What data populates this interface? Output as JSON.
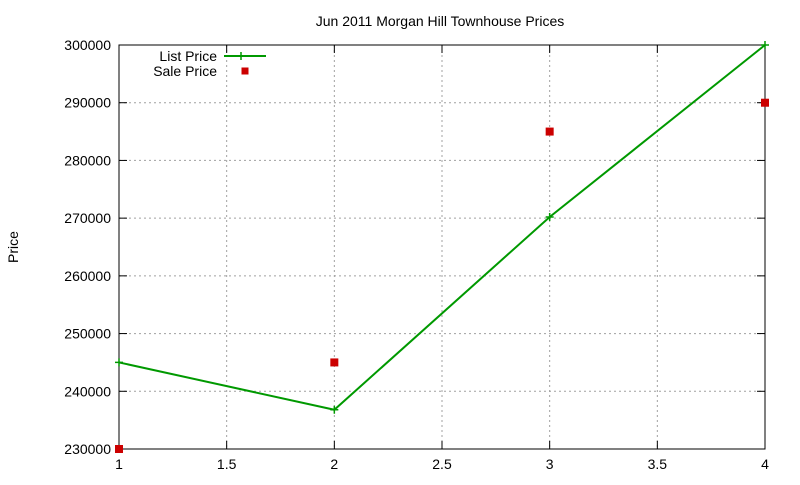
{
  "chart_data": {
    "type": "line",
    "title": "Jun 2011 Morgan Hill Townhouse Prices",
    "xlabel": "",
    "ylabel": "Price",
    "xlim": [
      1,
      4
    ],
    "ylim": [
      230000,
      300000
    ],
    "x_ticks": [
      1,
      1.5,
      2,
      2.5,
      3,
      3.5,
      4
    ],
    "x_tick_labels": [
      "1",
      "1.5",
      "2",
      "2.5",
      "3",
      "3.5",
      "4"
    ],
    "y_ticks": [
      230000,
      240000,
      250000,
      260000,
      270000,
      280000,
      290000,
      300000
    ],
    "y_tick_labels": [
      "230000",
      "240000",
      "250000",
      "260000",
      "270000",
      "280000",
      "290000",
      "300000"
    ],
    "grid": true,
    "legend_position": "top-left",
    "series": [
      {
        "name": "List Price",
        "style": "line-with-plus-markers",
        "color": "#009900",
        "x": [
          1,
          2,
          3,
          4
        ],
        "y": [
          245000,
          236800,
          270200,
          300000
        ]
      },
      {
        "name": "Sale Price",
        "style": "square-markers",
        "color": "#cc0000",
        "x": [
          1,
          2,
          3,
          4
        ],
        "y": [
          230000,
          245000,
          285000,
          290000
        ]
      }
    ]
  }
}
